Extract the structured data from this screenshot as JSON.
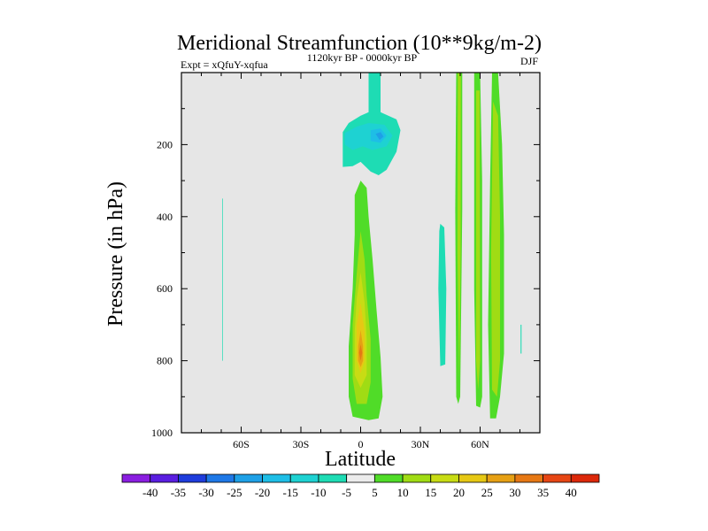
{
  "chart_data": {
    "type": "heatmap",
    "title": "Meridional Streamfunction (10**9kg/m-2)",
    "subtitle_left": "Expt = xQfuY-xqfua",
    "subtitle_center": "1120kyr BP - 0000kyr BP",
    "subtitle_right": "DJF",
    "xlabel": "Latitude",
    "ylabel": "Pressure (in hPa)",
    "xlim": [
      -90,
      90
    ],
    "ylim": [
      1000,
      0
    ],
    "x_ticks": [
      {
        "value": -60,
        "label": "60S"
      },
      {
        "value": -30,
        "label": "30S"
      },
      {
        "value": 0,
        "label": "0"
      },
      {
        "value": 30,
        "label": "30N"
      },
      {
        "value": 60,
        "label": "60N"
      }
    ],
    "y_ticks": [
      {
        "value": 200,
        "label": "200"
      },
      {
        "value": 400,
        "label": "400"
      },
      {
        "value": 600,
        "label": "600"
      },
      {
        "value": 800,
        "label": "800"
      },
      {
        "value": 1000,
        "label": "1000"
      }
    ],
    "background_color": "#e6e6e6",
    "colorbar": {
      "labels": [
        "-40",
        "-35",
        "-30",
        "-25",
        "-20",
        "-15",
        "-10",
        "-5",
        "5",
        "10",
        "15",
        "20",
        "25",
        "30",
        "35",
        "40"
      ],
      "colors": [
        "#8a1ee0",
        "#5a1ee0",
        "#1e3cdc",
        "#1e78e6",
        "#1ea0e6",
        "#1ebee6",
        "#1ed2d2",
        "#1edcb4",
        "#ececec",
        "#50dc28",
        "#a0dc14",
        "#c8dc14",
        "#e6c814",
        "#e6a014",
        "#e67814",
        "#e64614",
        "#dc280a"
      ]
    },
    "regions": [
      {
        "name": "north-upper-negative",
        "color": "#1edcb4",
        "points": [
          [
            4,
            0
          ],
          [
            10,
            0
          ],
          [
            10,
            110
          ],
          [
            18,
            130
          ],
          [
            20,
            160
          ],
          [
            18,
            220
          ],
          [
            13,
            270
          ],
          [
            9,
            285
          ],
          [
            5,
            275
          ],
          [
            0,
            248
          ],
          [
            -4,
            260
          ],
          [
            -9,
            262
          ],
          [
            -9,
            165
          ],
          [
            -6,
            140
          ],
          [
            0,
            120
          ],
          [
            4,
            110
          ]
        ]
      },
      {
        "name": "north-upper-core-1",
        "color": "#1ed2d2",
        "points": [
          [
            -8,
            168
          ],
          [
            -2,
            150
          ],
          [
            4,
            140
          ],
          [
            12,
            145
          ],
          [
            16,
            175
          ],
          [
            13,
            205
          ],
          [
            6,
            215
          ],
          [
            1,
            205
          ],
          [
            -4,
            215
          ],
          [
            -8,
            200
          ]
        ]
      },
      {
        "name": "north-upper-core-2",
        "color": "#1ebee6",
        "points": [
          [
            5,
            160
          ],
          [
            10,
            155
          ],
          [
            13,
            175
          ],
          [
            10,
            195
          ],
          [
            5,
            190
          ]
        ]
      },
      {
        "name": "north-upper-core-3",
        "color": "#1ea0e6",
        "points": [
          [
            7.5,
            170
          ],
          [
            10,
            165
          ],
          [
            11.5,
            178
          ],
          [
            9.5,
            187
          ]
        ]
      },
      {
        "name": "north-pos-band-1",
        "color": "#50dc28",
        "points": [
          [
            0,
            300
          ],
          [
            3,
            320
          ],
          [
            4,
            400
          ],
          [
            6,
            520
          ],
          [
            8,
            660
          ],
          [
            10,
            790
          ],
          [
            11,
            900
          ],
          [
            9,
            960
          ],
          [
            4,
            965
          ],
          [
            -4,
            955
          ],
          [
            -6,
            900
          ],
          [
            -6,
            760
          ],
          [
            -4,
            600
          ],
          [
            -3,
            450
          ],
          [
            -3,
            340
          ]
        ]
      },
      {
        "name": "north-pos-band-2",
        "color": "#a0dc14",
        "points": [
          [
            0,
            440
          ],
          [
            2,
            520
          ],
          [
            3,
            620
          ],
          [
            5,
            740
          ],
          [
            5,
            860
          ],
          [
            3,
            920
          ],
          [
            -2,
            920
          ],
          [
            -4,
            850
          ],
          [
            -4,
            700
          ],
          [
            -2,
            560
          ]
        ]
      },
      {
        "name": "north-pos-band-3",
        "color": "#c8dc14",
        "points": [
          [
            0,
            555
          ],
          [
            2,
            640
          ],
          [
            3,
            740
          ],
          [
            3,
            840
          ],
          [
            0,
            875
          ],
          [
            -3,
            840
          ],
          [
            -3,
            720
          ],
          [
            -2,
            630
          ]
        ]
      },
      {
        "name": "north-pos-band-4",
        "color": "#e6c814",
        "points": [
          [
            0,
            640
          ],
          [
            2,
            720
          ],
          [
            2,
            800
          ],
          [
            0,
            835
          ],
          [
            -2,
            800
          ],
          [
            -2,
            700
          ]
        ]
      },
      {
        "name": "north-pos-band-5",
        "color": "#e6a014",
        "points": [
          [
            0,
            715
          ],
          [
            1.2,
            760
          ],
          [
            1.2,
            800
          ],
          [
            0,
            818
          ],
          [
            -1.2,
            800
          ],
          [
            -1.2,
            760
          ]
        ]
      },
      {
        "name": "north-pos-core",
        "color": "#e67814",
        "points": [
          [
            0,
            755
          ],
          [
            0.8,
            778
          ],
          [
            0,
            800
          ],
          [
            -0.8,
            778
          ]
        ]
      },
      {
        "name": "mid-lat-negative-strip",
        "color": "#1edcb4",
        "points": [
          [
            40,
            420
          ],
          [
            42,
            430
          ],
          [
            43,
            600
          ],
          [
            42.5,
            810
          ],
          [
            40,
            815
          ],
          [
            39,
            600
          ],
          [
            39.5,
            440
          ]
        ]
      },
      {
        "name": "band-50n-green",
        "color": "#50dc28",
        "points": [
          [
            48,
            0
          ],
          [
            51,
            0
          ],
          [
            51,
            380
          ],
          [
            50,
            900
          ],
          [
            49,
            920
          ],
          [
            48,
            900
          ],
          [
            47.5,
            380
          ]
        ]
      },
      {
        "name": "band-50n-yellow",
        "color": "#a0dc14",
        "points": [
          [
            48.8,
            0
          ],
          [
            50.3,
            0
          ],
          [
            50.2,
            500
          ],
          [
            49.5,
            850
          ],
          [
            48.6,
            500
          ]
        ]
      },
      {
        "name": "band-58n-green",
        "color": "#50dc28",
        "points": [
          [
            57,
            0
          ],
          [
            60,
            0
          ],
          [
            61,
            300
          ],
          [
            61,
            900
          ],
          [
            60,
            930
          ],
          [
            58,
            925
          ],
          [
            57,
            600
          ]
        ]
      },
      {
        "name": "band-58n-yellow",
        "color": "#a0dc14",
        "points": [
          [
            58,
            50
          ],
          [
            59.8,
            50
          ],
          [
            60,
            800
          ],
          [
            59,
            880
          ],
          [
            58,
            800
          ]
        ]
      },
      {
        "name": "band-65n-green",
        "color": "#50dc28",
        "points": [
          [
            66,
            0
          ],
          [
            69,
            0
          ],
          [
            71,
            200
          ],
          [
            72,
            450
          ],
          [
            72,
            780
          ],
          [
            70,
            900
          ],
          [
            68,
            960
          ],
          [
            65,
            960
          ],
          [
            64,
            700
          ],
          [
            65,
            300
          ]
        ]
      },
      {
        "name": "band-65n-yellow",
        "color": "#a0dc14",
        "points": [
          [
            66.5,
            80
          ],
          [
            69,
            120
          ],
          [
            70,
            400
          ],
          [
            70,
            800
          ],
          [
            68.5,
            900
          ],
          [
            66,
            880
          ],
          [
            65.5,
            500
          ]
        ]
      },
      {
        "name": "south-negative-strip",
        "color": "#1edcb4",
        "points": [
          [
            -69.5,
            350
          ],
          [
            -69.2,
            350
          ],
          [
            -69.2,
            800
          ],
          [
            -69.5,
            800
          ]
        ]
      },
      {
        "name": "north-edge-negative-strip",
        "color": "#1edcb4",
        "points": [
          [
            80.3,
            700
          ],
          [
            80.8,
            700
          ],
          [
            80.8,
            780
          ],
          [
            80.3,
            780
          ]
        ]
      }
    ]
  }
}
